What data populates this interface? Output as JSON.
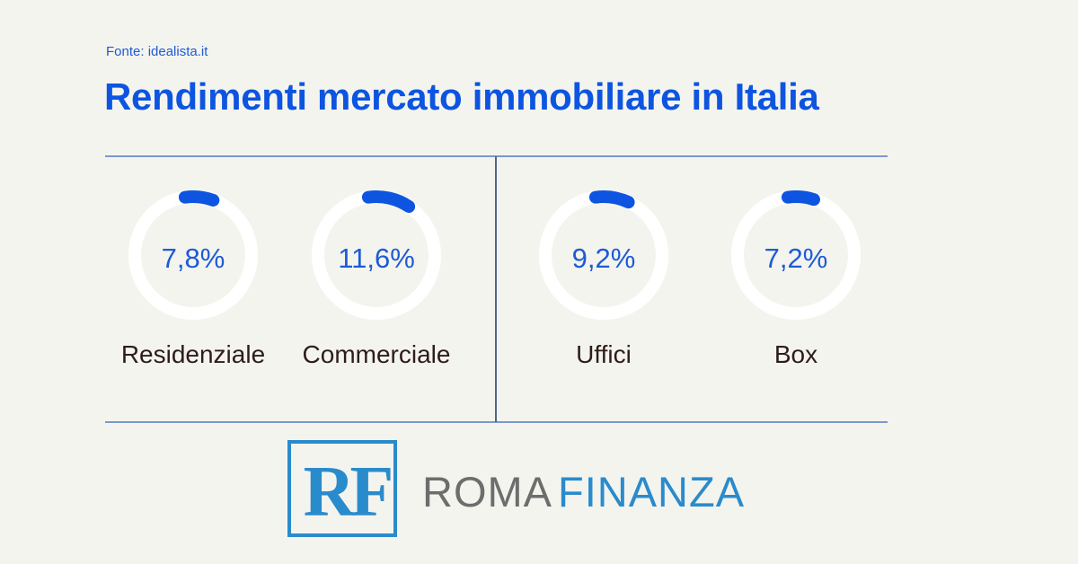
{
  "source": "Fonte: idealista.it",
  "title": "Rendimenti mercato immobiliare in Italia",
  "colors": {
    "accent": "#0d55e0",
    "ring_track": "#ffffff",
    "background": "#f4f4ef",
    "label": "#2e1d17",
    "logo_blue": "#2a8bcc",
    "logo_gray": "#6d6d6d"
  },
  "gauges": [
    {
      "label": "Residenziale",
      "value_text": "7,8%",
      "value": 7.8
    },
    {
      "label": "Commerciale",
      "value_text": "11,6%",
      "value": 11.6
    },
    {
      "label": "Uffici",
      "value_text": "9,2%",
      "value": 9.2
    },
    {
      "label": "Box",
      "value_text": "7,2%",
      "value": 7.2
    }
  ],
  "logo": {
    "mark": "RF",
    "name_part1": "ROMA",
    "name_part2": "FINANZA"
  },
  "chart_data": {
    "type": "pie",
    "subtype": "radial-gauge",
    "title": "Rendimenti mercato immobiliare in Italia",
    "subtitle": "Fonte: idealista.it",
    "categories": [
      "Residenziale",
      "Commerciale",
      "Uffici",
      "Box"
    ],
    "values": [
      7.8,
      11.6,
      9.2,
      7.2
    ],
    "unit": "%",
    "groups": [
      [
        "Residenziale",
        "Commerciale"
      ],
      [
        "Uffici",
        "Box"
      ]
    ]
  }
}
